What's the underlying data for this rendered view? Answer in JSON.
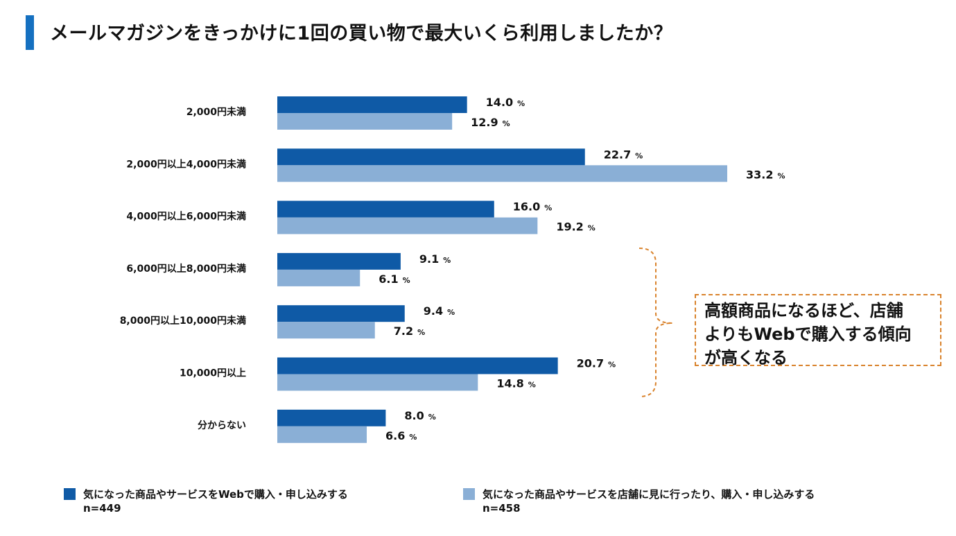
{
  "title": "メールマガジンをきっかけに1回の買い物で最大いくら利用しましたか？",
  "callout": {
    "lines": [
      "高額商品になるほど、店舗",
      "よりもWebで購入する傾向",
      "が高くなる"
    ]
  },
  "colors": {
    "accent": "#1570c0",
    "web": "#0f5aa6",
    "store": "#8aafd6",
    "callout_border": "#d9822b"
  },
  "legend": [
    {
      "label": "気になった商品やサービスをWebで購入・申し込みする",
      "n": "n=449"
    },
    {
      "label": "気になった商品やサービスを店舗に見に行ったり、購入・申し込みする",
      "n": "n=458"
    }
  ],
  "chart_data": {
    "type": "bar",
    "orientation": "horizontal",
    "categories": [
      "2,000円未満",
      "2,000円以上4,000円未満",
      "4,000円以上6,000円未満",
      "6,000円以上8,000円未満",
      "8,000円以上10,000円未満",
      "10,000円以上",
      "分からない"
    ],
    "series": [
      {
        "name": "気になった商品やサービスをWebで購入・申し込みする",
        "values": [
          14.0,
          22.7,
          16.0,
          9.1,
          9.4,
          20.7,
          8.0
        ]
      },
      {
        "name": "気になった商品やサービスを店舗に見に行ったり、購入・申し込みする",
        "values": [
          12.9,
          33.2,
          19.2,
          6.1,
          7.2,
          14.8,
          6.6
        ]
      }
    ],
    "unit": "%",
    "xlim": [
      0,
      33.2
    ],
    "title": "メールマガジンをきっかけに1回の買い物で最大いくら利用しましたか？"
  }
}
